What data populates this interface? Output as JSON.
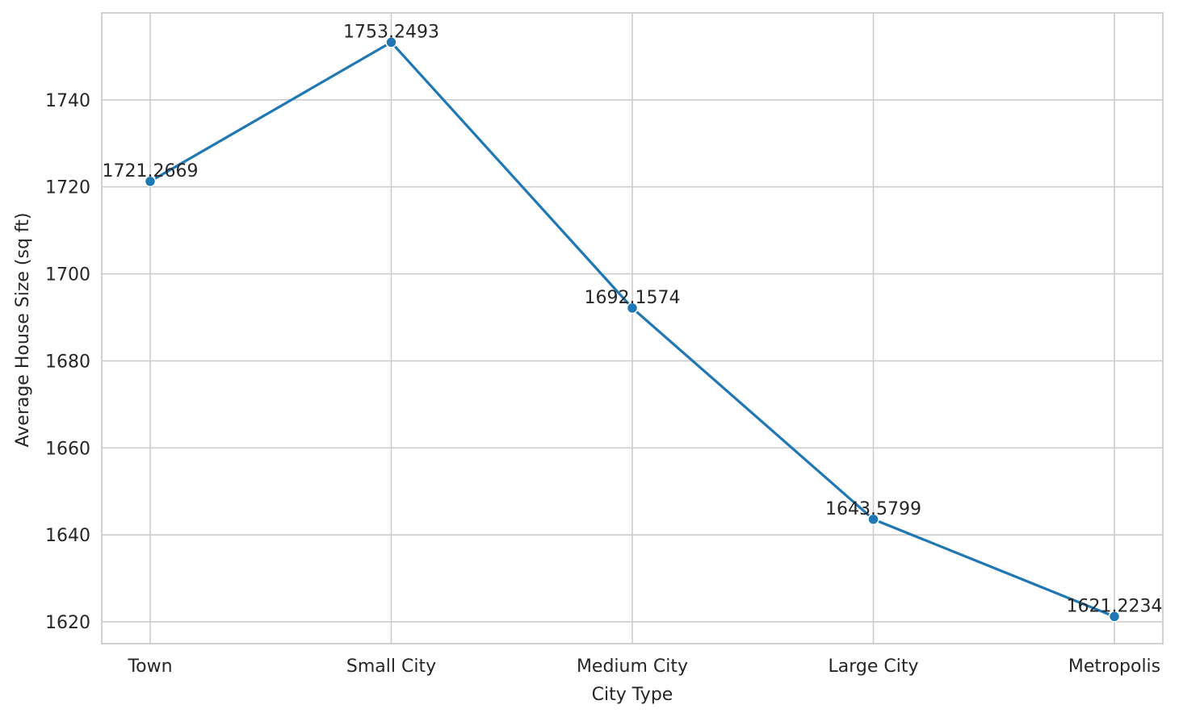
{
  "chart_data": {
    "type": "line",
    "categories": [
      "Town",
      "Small City",
      "Medium City",
      "Large City",
      "Metropolis"
    ],
    "series": [
      {
        "values": [
          1721.2669,
          1753.2493,
          1692.1574,
          1643.5799,
          1621.2234
        ],
        "labels": [
          "1721.2669",
          "1753.2493",
          "1692.1574",
          "1643.5799",
          "1621.2234"
        ],
        "color": "#1f77b4",
        "marker": "circle"
      }
    ],
    "xlabel": "City Type",
    "ylabel": "Average House Size (sq ft)",
    "ylim": [
      1615,
      1760
    ],
    "yticks": [
      1620,
      1640,
      1660,
      1680,
      1700,
      1720,
      1740
    ],
    "ytick_labels": [
      "1620",
      "1640",
      "1660",
      "1680",
      "1700",
      "1720",
      "1740"
    ],
    "grid": true,
    "style": {
      "grid_color": "#cccccc",
      "text_color": "#262626",
      "background": "#ffffff"
    }
  }
}
